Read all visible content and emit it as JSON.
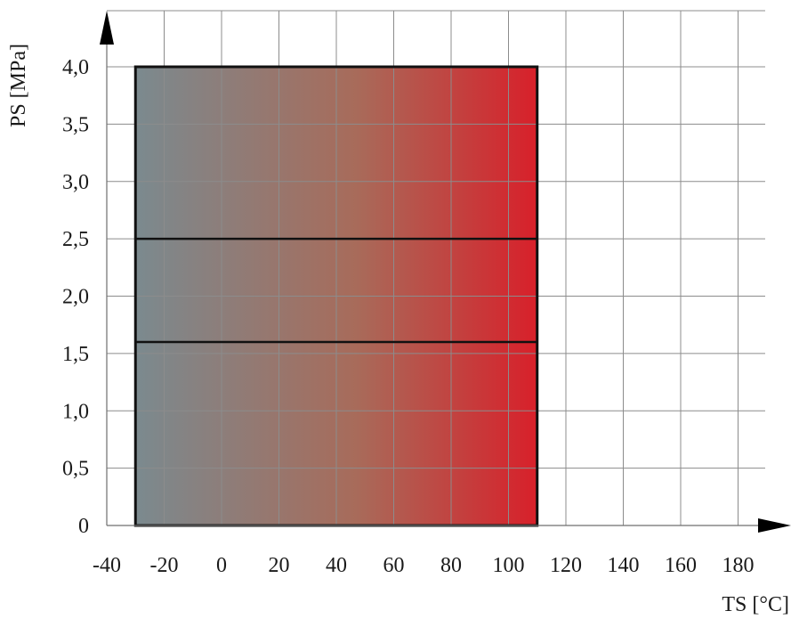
{
  "chart_data": {
    "type": "area",
    "title": "",
    "xlabel": "TS [°C]",
    "ylabel": "PS [MPa]",
    "xlim": [
      -40,
      200
    ],
    "ylim": [
      0,
      4.5
    ],
    "x_ticks": [
      {
        "value": -40,
        "label": "-40"
      },
      {
        "value": -20,
        "label": "-20"
      },
      {
        "value": 0,
        "label": "0"
      },
      {
        "value": 20,
        "label": "20"
      },
      {
        "value": 40,
        "label": "40"
      },
      {
        "value": 60,
        "label": "60"
      },
      {
        "value": 80,
        "label": "80"
      },
      {
        "value": 100,
        "label": "100"
      },
      {
        "value": 120,
        "label": "120"
      },
      {
        "value": 140,
        "label": "140"
      },
      {
        "value": 160,
        "label": "160"
      },
      {
        "value": 180,
        "label": "180"
      }
    ],
    "y_ticks": [
      {
        "value": 0,
        "label": "0"
      },
      {
        "value": 0.5,
        "label": "0,5"
      },
      {
        "value": 1.0,
        "label": "1,0"
      },
      {
        "value": 1.5,
        "label": "1,5"
      },
      {
        "value": 2.0,
        "label": "2,0"
      },
      {
        "value": 2.5,
        "label": "2,5"
      },
      {
        "value": 3.0,
        "label": "3,0"
      },
      {
        "value": 3.5,
        "label": "3,5"
      },
      {
        "value": 4.0,
        "label": "4,0"
      }
    ],
    "grid": true,
    "region": {
      "x_min": -30,
      "x_max": 110,
      "y_min": 0,
      "y_max": 4.0
    },
    "limit_lines": [
      1.6,
      2.5
    ],
    "gradient": {
      "cold_color": "#7b8a8f",
      "hot_color": "#d8202a"
    }
  }
}
